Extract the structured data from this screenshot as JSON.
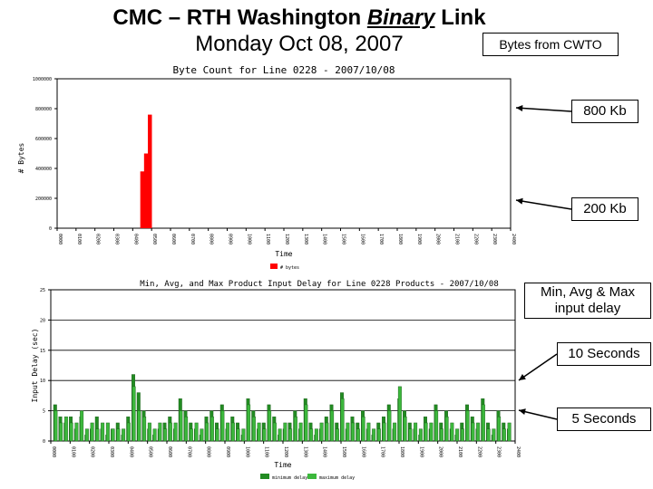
{
  "header": {
    "title_pre": "CMC – RTH Washington ",
    "title_em": "Binary",
    "title_post": " Link",
    "subtitle": "Monday Oct 08, 2007"
  },
  "callouts": {
    "bytes_from": "Bytes from CWTO",
    "kb800": "800 Kb",
    "kb200": "200 Kb",
    "delay_line1": "Min, Avg & Max",
    "delay_line2": "input delay",
    "sec10": "10 Seconds",
    "sec5": "5 Seconds"
  },
  "colors": {
    "bytes": "#ff0000",
    "delay_dark": "#228b22",
    "delay_light": "#3cb83c"
  },
  "chart_data": [
    {
      "type": "bar",
      "title": "Byte Count for Line 0228 - 2007/10/08",
      "xlabel": "Time",
      "ylabel": "# Bytes",
      "ylim": [
        0,
        1000000
      ],
      "yticks": [
        "0",
        "200000",
        "400000",
        "600000",
        "800000",
        "1000000"
      ],
      "xticks": [
        "0000",
        "0100",
        "0200",
        "0300",
        "0400",
        "0500",
        "0600",
        "0700",
        "0800",
        "0900",
        "1000",
        "1100",
        "1200",
        "1300",
        "1400",
        "1500",
        "1600",
        "1700",
        "1800",
        "1900",
        "2000",
        "2100",
        "2200",
        "2300",
        "2400"
      ],
      "legend": [
        "# bytes"
      ],
      "legend_position": "bottom",
      "grid": false,
      "series": [
        {
          "name": "# bytes",
          "bars": [
            [
              4.4,
              380000
            ],
            [
              4.6,
              500000
            ],
            [
              4.8,
              760000
            ]
          ]
        }
      ]
    },
    {
      "type": "bar",
      "title": "Min, Avg, and Max Product Input Delay for Line 0228 Products - 2007/10/08",
      "xlabel": "Time",
      "ylabel": "Input Delay (sec)",
      "ylim": [
        0,
        25
      ],
      "yticks": [
        "0",
        "5",
        "10",
        "15",
        "20",
        "25"
      ],
      "xticks": [
        "0000",
        "0100",
        "0200",
        "0300",
        "0400",
        "0500",
        "0600",
        "0700",
        "0800",
        "0900",
        "1000",
        "1100",
        "1200",
        "1300",
        "1400",
        "1500",
        "1600",
        "1700",
        "1800",
        "1900",
        "2000",
        "2100",
        "2200",
        "2300",
        "2400"
      ],
      "legend": [
        "minimum delay",
        "maximum delay"
      ],
      "legend_position": "bottom",
      "grid": true,
      "series": [
        {
          "name": "minimum delay",
          "values": [
            6,
            4,
            3,
            4,
            2,
            4,
            1,
            2,
            4,
            2,
            1,
            2,
            3,
            1,
            4,
            11,
            8,
            5,
            2,
            1,
            2,
            3,
            4,
            2,
            7,
            5,
            3,
            2,
            1,
            4,
            5,
            3,
            6,
            2,
            4,
            3,
            1,
            7,
            5,
            2,
            3,
            6,
            4,
            1,
            2,
            3,
            5,
            2,
            7,
            3,
            1,
            2,
            4,
            6,
            3,
            8,
            2,
            4,
            3,
            5,
            2,
            1,
            3,
            4,
            6,
            2,
            7,
            5,
            3,
            2,
            1,
            4,
            2,
            6,
            3,
            5,
            2,
            1,
            3,
            6,
            4,
            2,
            7,
            3,
            1,
            5,
            3,
            2
          ]
        },
        {
          "name": "maximum delay",
          "values": [
            5,
            3,
            4,
            3,
            3,
            5,
            2,
            3,
            2,
            3,
            3,
            2,
            2,
            2,
            3,
            9,
            5,
            4,
            3,
            2,
            3,
            2,
            3,
            3,
            5,
            4,
            2,
            3,
            2,
            3,
            4,
            2,
            5,
            3,
            3,
            2,
            2,
            6,
            4,
            3,
            2,
            5,
            3,
            2,
            3,
            2,
            4,
            3,
            6,
            2,
            2,
            3,
            3,
            5,
            2,
            7,
            3,
            3,
            2,
            4,
            3,
            2,
            2,
            3,
            5,
            3,
            9,
            4,
            2,
            3,
            2,
            3,
            3,
            5,
            2,
            4,
            3,
            2,
            2,
            5,
            3,
            3,
            6,
            2,
            2,
            4,
            2,
            3
          ]
        }
      ]
    }
  ]
}
